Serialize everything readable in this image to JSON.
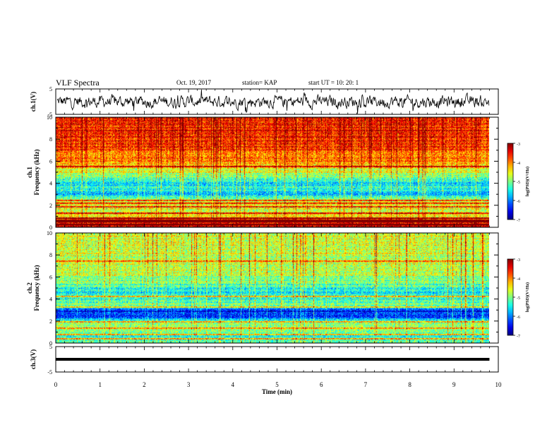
{
  "header": {
    "title": "VLF Spectra",
    "date": "Oct. 19, 2017",
    "station": "station= KAP",
    "start": "start  UT  =   10: 20: 1"
  },
  "chart_data": [
    {
      "type": "line",
      "name": "ch1-waveform",
      "ylabel": "ch.1(V)",
      "ylim": [
        -5,
        5
      ],
      "yticks": [
        "5",
        "-5"
      ],
      "xlim": [
        0,
        10
      ],
      "x_end": 9.8,
      "level": 0.0,
      "spread": 2.6
    },
    {
      "type": "heatmap",
      "name": "ch1-spectrogram",
      "ylabel": "ch.1\nFrequency  (kHz)",
      "ylabel_lines": [
        "ch.1",
        "Frequency  (kHz)"
      ],
      "ylim": [
        0,
        10
      ],
      "yticks": [
        "0",
        "2",
        "4",
        "6",
        "8",
        "10"
      ],
      "xlim": [
        0,
        10
      ],
      "x_end": 9.8,
      "colorbar": {
        "label": "log(PSD)(V²/Hz)",
        "range": [
          -7,
          -3
        ],
        "ticks": [
          "-3",
          "-4",
          "-5",
          "-6",
          "-7"
        ]
      },
      "profile": [
        {
          "f": 0.0,
          "v": -3.3
        },
        {
          "f": 0.5,
          "v": -3.4
        },
        {
          "f": 1.0,
          "v": -4.4
        },
        {
          "f": 1.6,
          "v": -4.6
        },
        {
          "f": 2.0,
          "v": -4.4
        },
        {
          "f": 2.5,
          "v": -4.8
        },
        {
          "f": 3.0,
          "v": -5.8
        },
        {
          "f": 3.5,
          "v": -5.3
        },
        {
          "f": 4.0,
          "v": -5.6
        },
        {
          "f": 4.6,
          "v": -5.0
        },
        {
          "f": 5.2,
          "v": -4.6
        },
        {
          "f": 6.0,
          "v": -4.1
        },
        {
          "f": 7.0,
          "v": -3.8
        },
        {
          "f": 8.0,
          "v": -3.6
        },
        {
          "f": 9.0,
          "v": -3.5
        },
        {
          "f": 10.0,
          "v": -3.5
        }
      ],
      "lines_khz": [
        0.2,
        0.45,
        0.6,
        0.8,
        1.2,
        1.8,
        2.1,
        2.4,
        5.5
      ]
    },
    {
      "type": "heatmap",
      "name": "ch2-spectrogram",
      "ylabel": "ch.2\nFrequency  (kHz)",
      "ylabel_lines": [
        "ch.2",
        "Frequency  (kHz)"
      ],
      "ylim": [
        0,
        10
      ],
      "yticks": [
        "0",
        "2",
        "4",
        "6",
        "8",
        "10"
      ],
      "xlim": [
        0,
        10
      ],
      "x_end": 9.8,
      "colorbar": {
        "label": "log(PSD)(V²/Hz)",
        "range": [
          -7,
          -3
        ],
        "ticks": [
          "-3",
          "-4",
          "-5",
          "-6",
          "-7"
        ]
      },
      "profile": [
        {
          "f": 0.0,
          "v": -5.0
        },
        {
          "f": 0.6,
          "v": -5.4
        },
        {
          "f": 1.2,
          "v": -5.0
        },
        {
          "f": 1.8,
          "v": -4.9
        },
        {
          "f": 2.3,
          "v": -6.1
        },
        {
          "f": 2.9,
          "v": -6.5
        },
        {
          "f": 3.4,
          "v": -5.0
        },
        {
          "f": 4.0,
          "v": -5.3
        },
        {
          "f": 4.6,
          "v": -5.6
        },
        {
          "f": 5.2,
          "v": -5.2
        },
        {
          "f": 6.0,
          "v": -4.9
        },
        {
          "f": 7.0,
          "v": -4.7
        },
        {
          "f": 8.0,
          "v": -4.7
        },
        {
          "f": 9.0,
          "v": -4.6
        },
        {
          "f": 10.0,
          "v": -4.6
        }
      ],
      "lines_khz": [
        0.3,
        0.7,
        1.3,
        1.9,
        3.2,
        4.2,
        7.4
      ]
    },
    {
      "type": "line",
      "name": "ch3-waveform",
      "ylabel": "ch.3(V)",
      "ylim": [
        -5,
        5
      ],
      "yticks": [
        "5",
        "-5"
      ],
      "xlim": [
        0,
        10
      ],
      "x_end": 9.8,
      "level": 0.0,
      "spread": 0.0
    }
  ],
  "xaxis": {
    "label": "Time  (min)",
    "ticks": [
      "0",
      "1",
      "2",
      "3",
      "4",
      "5",
      "6",
      "7",
      "8",
      "9",
      "10"
    ]
  }
}
